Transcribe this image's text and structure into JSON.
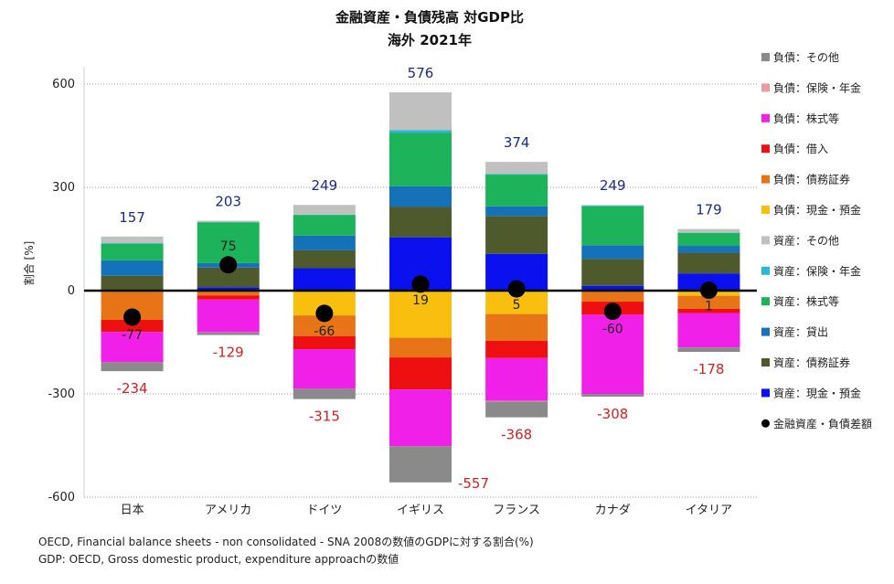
{
  "chart_data": {
    "type": "bar",
    "title": "金融資産・負債残高 対GDP比",
    "subtitle": "海外 2021年",
    "ylabel": "割合 [%]",
    "ylim": [
      -600,
      650
    ],
    "yticks": [
      -600,
      -300,
      0,
      300,
      600
    ],
    "categories": [
      "日本",
      "アメリカ",
      "ドイツ",
      "イギリス",
      "フランス",
      "カナダ",
      "イタリア"
    ],
    "series": [
      {
        "name": "資産：現金・預金",
        "color": "#0a10ee",
        "values": [
          3,
          10,
          65,
          155,
          107,
          14,
          50
        ]
      },
      {
        "name": "資産：債務証券",
        "color": "#4e5a2b",
        "values": [
          40,
          57,
          52,
          88,
          110,
          78,
          60
        ]
      },
      {
        "name": "資産：貸出",
        "color": "#1572b9",
        "values": [
          45,
          13,
          43,
          60,
          28,
          40,
          20
        ]
      },
      {
        "name": "資産：株式等",
        "color": "#1db35a",
        "values": [
          48,
          118,
          60,
          155,
          92,
          113,
          38
        ]
      },
      {
        "name": "資産：保険・年金",
        "color": "#2ab8d6",
        "values": [
          2,
          1,
          1,
          8,
          2,
          2,
          1
        ]
      },
      {
        "name": "資産：その他",
        "color": "#c0c0c0",
        "values": [
          19,
          4,
          28,
          110,
          35,
          2,
          10
        ]
      },
      {
        "name": "負債：現金・預金",
        "color": "#f8bf0e",
        "values": [
          0,
          -2,
          -72,
          -137,
          -68,
          -2,
          -15
        ]
      },
      {
        "name": "負債：債務証券",
        "color": "#e87418",
        "values": [
          -85,
          -12,
          -60,
          -57,
          -78,
          -30,
          -38
        ]
      },
      {
        "name": "負債：借入",
        "color": "#ee1010",
        "values": [
          -35,
          -12,
          -38,
          -93,
          -50,
          -38,
          -12
        ]
      },
      {
        "name": "負債：株式等",
        "color": "#f020e8",
        "values": [
          -88,
          -95,
          -115,
          -165,
          -124,
          -230,
          -100
        ]
      },
      {
        "name": "負債：保険・年金",
        "color": "#e89ca0",
        "values": [
          0,
          -1,
          0,
          0,
          -2,
          0,
          0
        ]
      },
      {
        "name": "負債：その他",
        "color": "#8a8a8a",
        "values": [
          -26,
          -7,
          -30,
          -105,
          -46,
          -8,
          -13
        ]
      }
    ],
    "net": {
      "name": "金融資産・負債差額",
      "values": [
        -77,
        75,
        -66,
        19,
        5,
        -60,
        1
      ]
    },
    "asset_totals": [
      157,
      203,
      249,
      576,
      374,
      249,
      179
    ],
    "liability_totals": [
      -234,
      -129,
      -315,
      -557,
      -368,
      -308,
      -178
    ],
    "grid": true,
    "legend": "right"
  },
  "footnotes": {
    "source": "OECD, Financial balance sheets -  non consolidated - SNA 2008の数値のGDPに対する割合(%)",
    "gdp": "GDP: OECD, Gross domestic product, expenditure approachの数値"
  }
}
